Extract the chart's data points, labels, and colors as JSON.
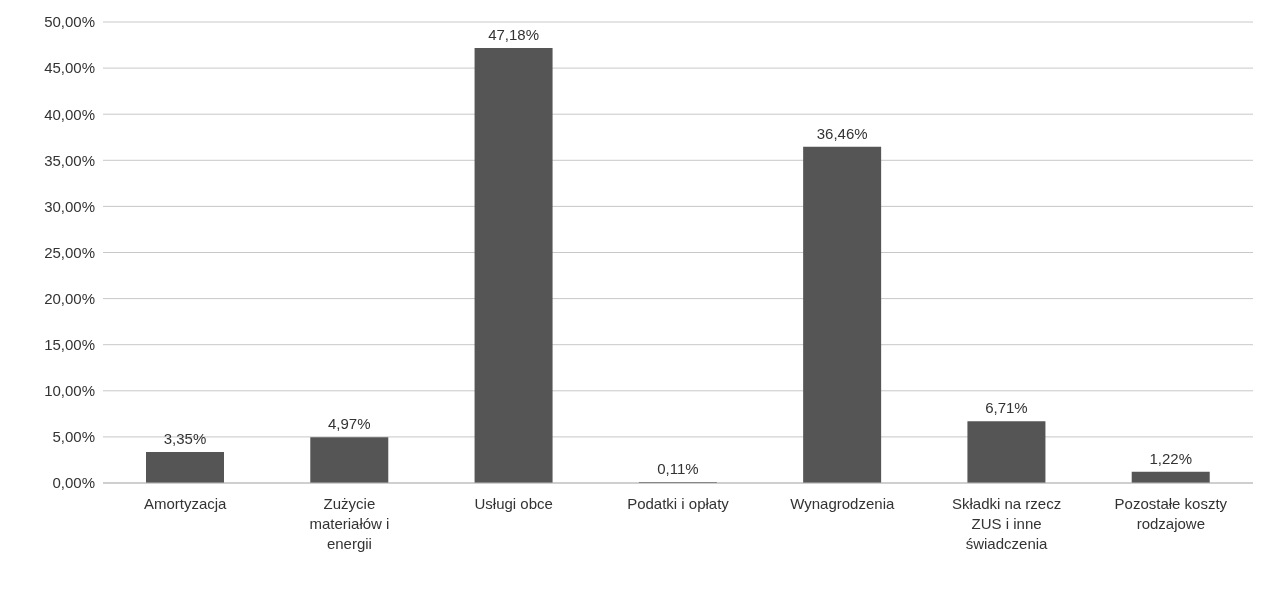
{
  "chart_data": {
    "type": "bar",
    "categories": [
      "Amortyzacja",
      "Zużycie materiałów i energii",
      "Usługi obce",
      "Podatki i opłaty",
      "Wynagrodzenia",
      "Składki na rzecz ZUS i inne świadczenia",
      "Pozostałe koszty rodzajowe"
    ],
    "values": [
      3.35,
      4.97,
      47.18,
      0.11,
      36.46,
      6.71,
      1.22
    ],
    "value_labels": [
      "3,35%",
      "4,97%",
      "47,18%",
      "0,11%",
      "36,46%",
      "6,71%",
      "1,22%"
    ],
    "color": "#555555",
    "ylim": [
      0,
      50
    ],
    "yticks": [
      {
        "value": 0,
        "label": "0,00%"
      },
      {
        "value": 5,
        "label": "5,00%"
      },
      {
        "value": 10,
        "label": "10,00%"
      },
      {
        "value": 15,
        "label": "15,00%"
      },
      {
        "value": 20,
        "label": "20,00%"
      },
      {
        "value": 25,
        "label": "25,00%"
      },
      {
        "value": 30,
        "label": "30,00%"
      },
      {
        "value": 35,
        "label": "35,00%"
      },
      {
        "value": 40,
        "label": "40,00%"
      },
      {
        "value": 45,
        "label": "45,00%"
      },
      {
        "value": 50,
        "label": "50,00%"
      }
    ],
    "grid": "y",
    "legend": false
  }
}
